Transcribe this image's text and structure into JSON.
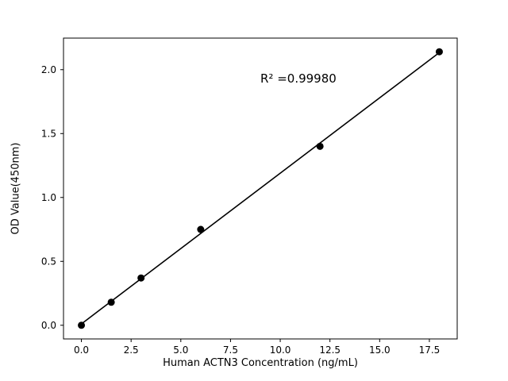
{
  "chart_data": {
    "type": "scatter",
    "title": "",
    "xlabel": "Human ACTN3 Concentration (ng/mL)",
    "ylabel": "OD Value(450nm)",
    "annotation": "R² =0.99980",
    "x": [
      0,
      1.5,
      3,
      6,
      12,
      18
    ],
    "y": [
      0.0,
      0.18,
      0.37,
      0.75,
      1.4,
      2.14
    ],
    "fit": {
      "slope": 0.11796,
      "intercept": 0.0104,
      "x_start": 0,
      "x_end": 18
    },
    "xlim": [
      -0.9,
      18.9
    ],
    "ylim": [
      -0.107,
      2.247
    ],
    "xticks": {
      "values": [
        0,
        2.5,
        5,
        7.5,
        10,
        12.5,
        15,
        17.5
      ],
      "labels": [
        "0.0",
        "2.5",
        "5.0",
        "7.5",
        "10.0",
        "12.5",
        "15.0",
        "17.5"
      ]
    },
    "yticks": {
      "values": [
        0,
        0.5,
        1.0,
        1.5,
        2.0
      ],
      "labels": [
        "0.0",
        "0.5",
        "1.0",
        "1.5",
        "2.0"
      ]
    },
    "marker_color": "#000000",
    "line_color": "#000000",
    "grid": false,
    "legend": "none"
  }
}
